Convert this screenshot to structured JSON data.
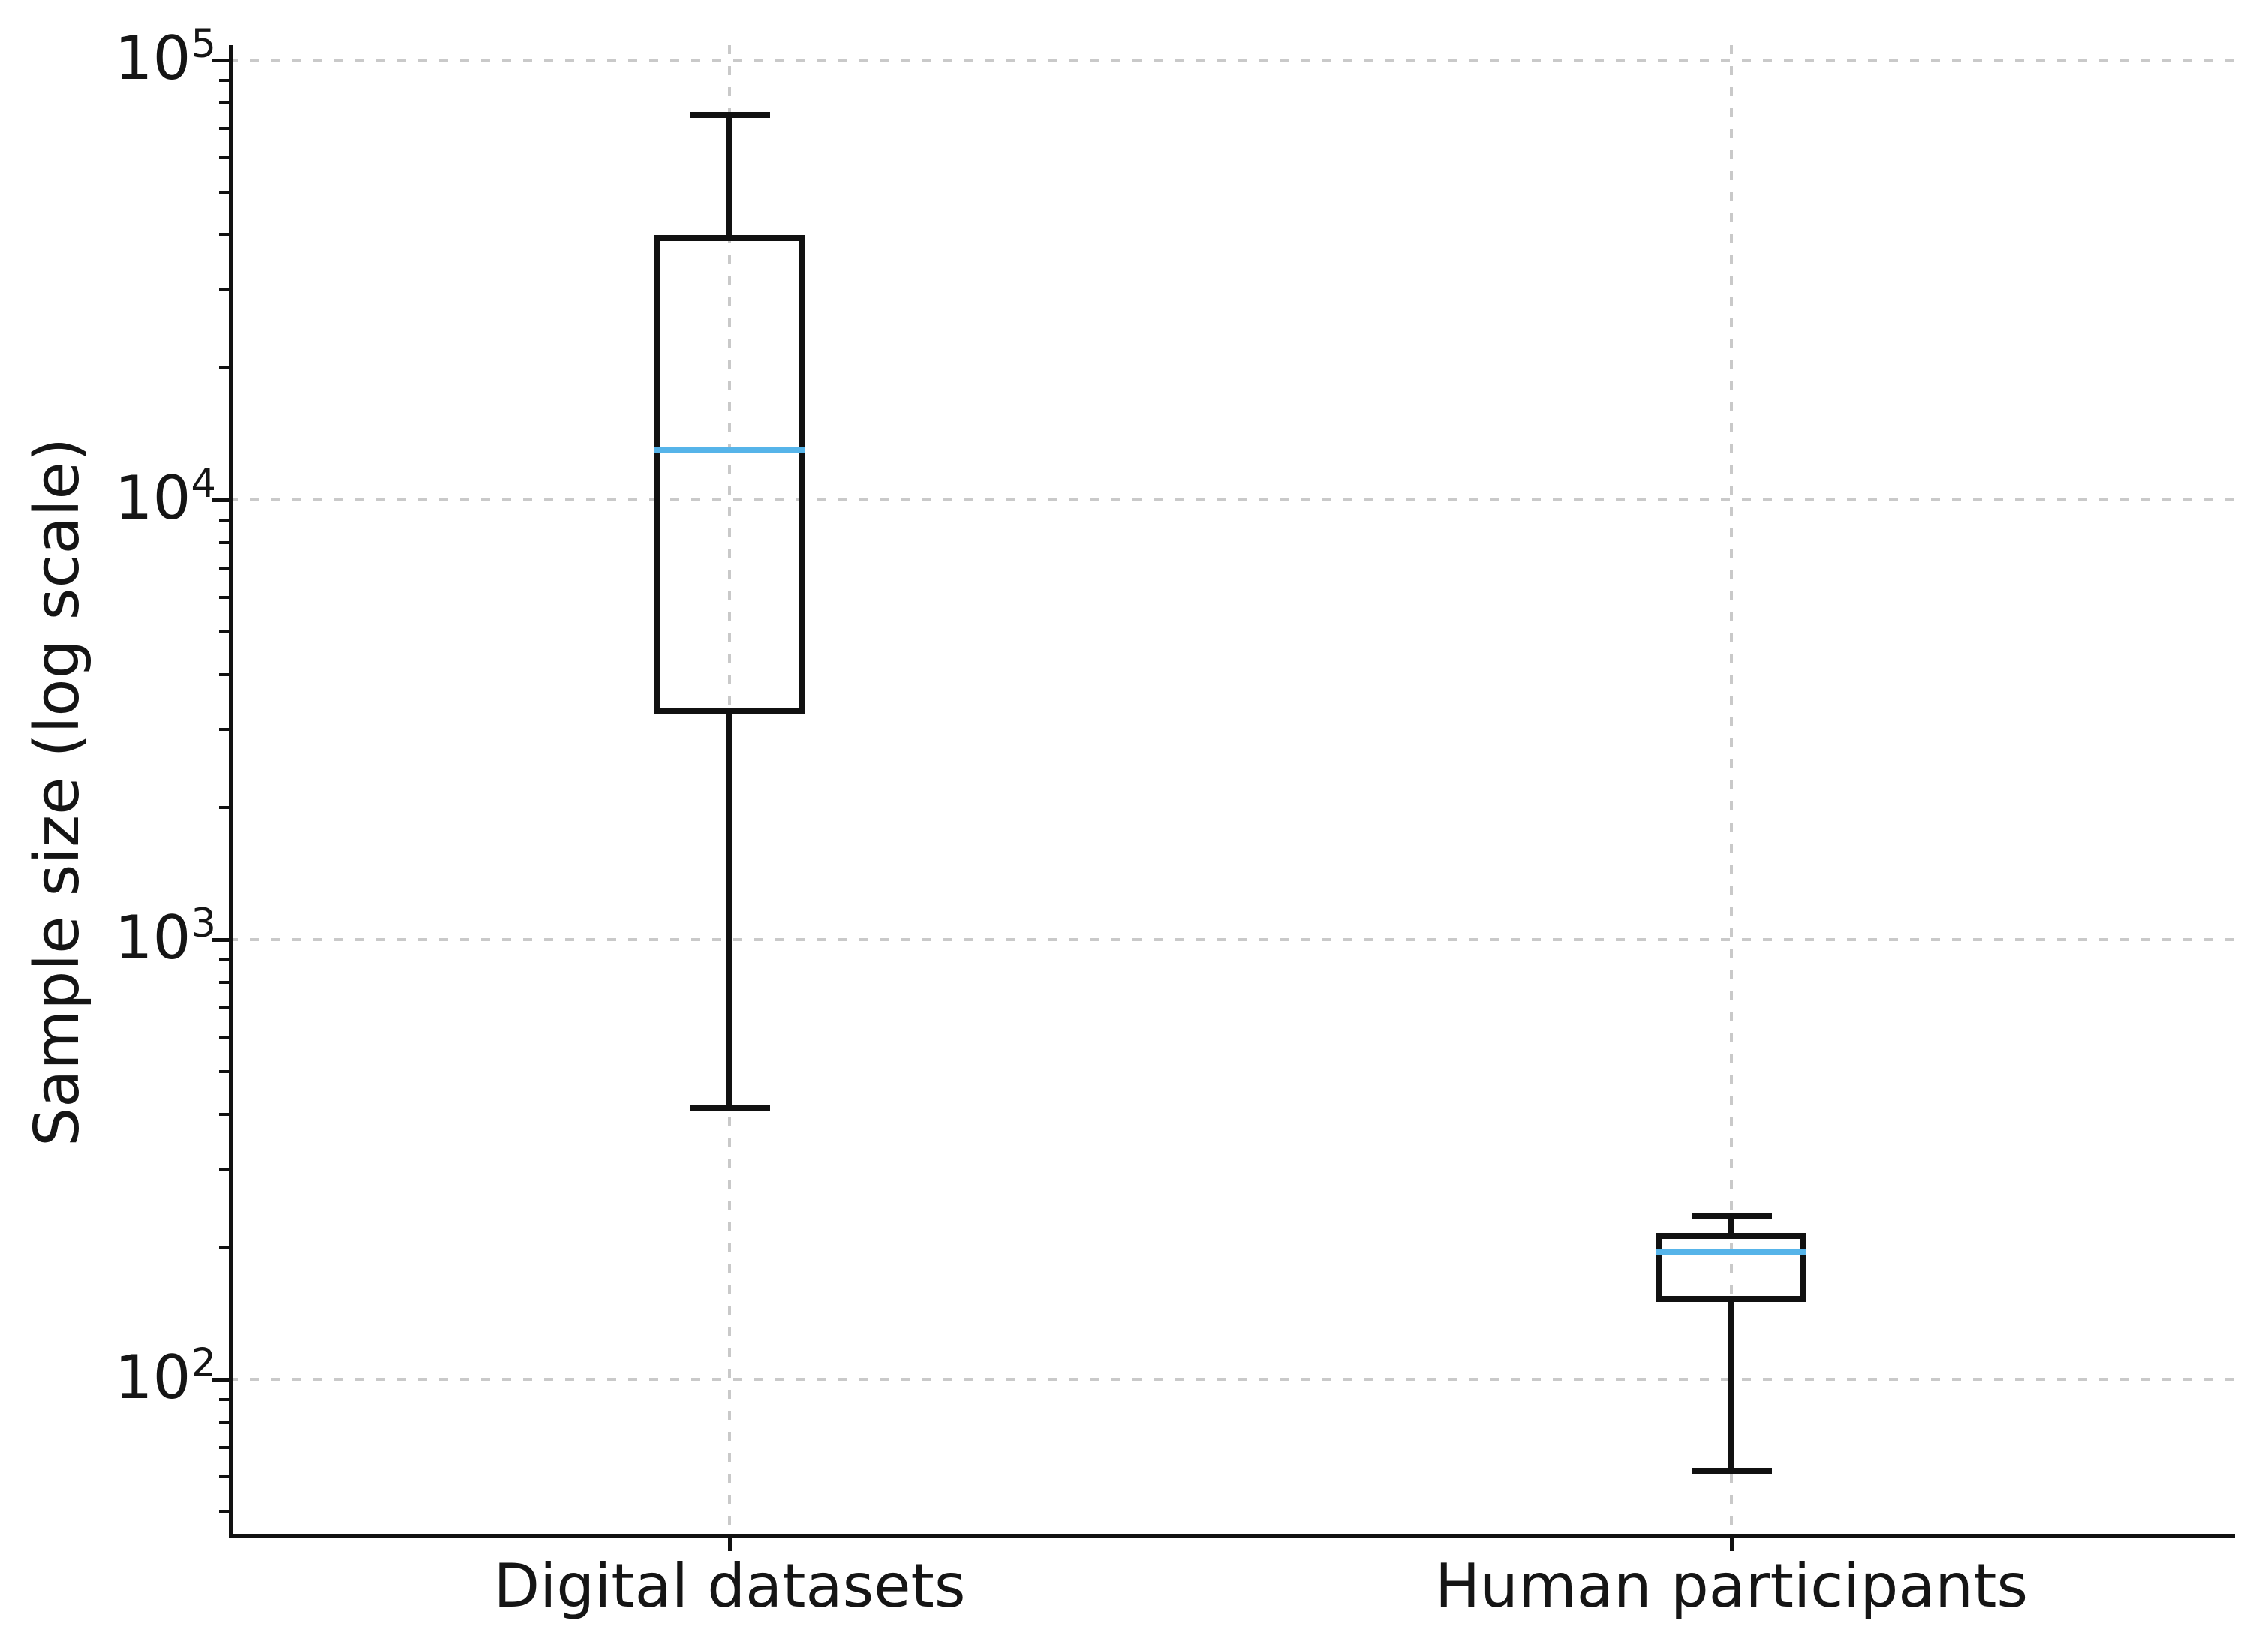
{
  "figure": {
    "background": "#ffffff"
  },
  "chart_data": {
    "type": "box",
    "title": "",
    "xlabel": "",
    "ylabel": "Sample size (log scale)",
    "yscale": "log",
    "ylim": [
      45,
      105000
    ],
    "grid": true,
    "grid_style": "dashed",
    "legend": "none",
    "categories": [
      "Digital datasets",
      "Human participants"
    ],
    "y_ticks": [
      {
        "label": "10^5",
        "value": 100000
      },
      {
        "label": "10^4",
        "value": 10000
      },
      {
        "label": "10^3",
        "value": 1000
      },
      {
        "label": "10^2",
        "value": 100
      }
    ],
    "series": [
      {
        "name": "Digital datasets",
        "whisker_low": 415,
        "q1": 3250,
        "median": 13000,
        "q3": 40000,
        "whisker_high": 75000
      },
      {
        "name": "Human participants",
        "whisker_low": 62,
        "q1": 150,
        "median": 195,
        "q3": 215,
        "whisker_high": 235
      }
    ],
    "colors": {
      "box_edge": "#111111",
      "median": "#56b4e9",
      "grid": "#c9c9c9",
      "text": "#151515"
    }
  }
}
